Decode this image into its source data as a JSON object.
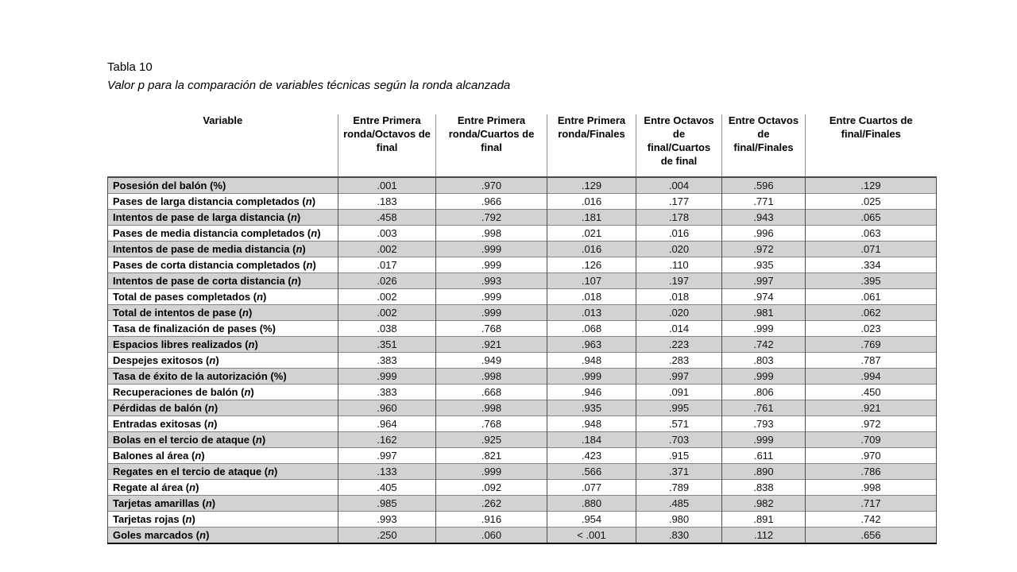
{
  "page": {
    "title": "Tabla 10",
    "caption": "Valor p para la comparación de variables técnicas según la ronda alcanzada"
  },
  "table": {
    "variable_header": "Variable",
    "comparison_headers": [
      "Entre Primera ronda/Octavos de final",
      "Entre Primera ronda/Cuartos de final",
      "Entre Primera ronda/Finales",
      "Entre Octavos de final/Cuartos de final",
      "Entre Octavos de final/Finales",
      "Entre Cuartos de final/Finales"
    ],
    "rows": [
      {
        "name": "Posesión del balón",
        "unit": "%",
        "values": [
          ".001",
          ".970",
          ".129",
          ".004",
          ".596",
          ".129"
        ]
      },
      {
        "name": "Pases de larga distancia completados",
        "unit": "n",
        "values": [
          ".183",
          ".966",
          ".016",
          ".177",
          ".771",
          ".025"
        ]
      },
      {
        "name": "Intentos de pase de larga distancia",
        "unit": "n",
        "values": [
          ".458",
          ".792",
          ".181",
          ".178",
          ".943",
          ".065"
        ]
      },
      {
        "name": "Pases de media distancia completados",
        "unit": "n",
        "values": [
          ".003",
          ".998",
          ".021",
          ".016",
          ".996",
          ".063"
        ]
      },
      {
        "name": "Intentos de pase de media distancia",
        "unit": "n",
        "values": [
          ".002",
          ".999",
          ".016",
          ".020",
          ".972",
          ".071"
        ]
      },
      {
        "name": "Pases de corta distancia completados",
        "unit": "n",
        "values": [
          ".017",
          ".999",
          ".126",
          ".110",
          ".935",
          ".334"
        ]
      },
      {
        "name": "Intentos de pase de corta distancia",
        "unit": "n",
        "values": [
          ".026",
          ".993",
          ".107",
          ".197",
          ".997",
          ".395"
        ]
      },
      {
        "name": "Total de pases completados",
        "unit": "n",
        "values": [
          ".002",
          ".999",
          ".018",
          ".018",
          ".974",
          ".061"
        ]
      },
      {
        "name": "Total de intentos de pase",
        "unit": "n",
        "values": [
          ".002",
          ".999",
          ".013",
          ".020",
          ".981",
          ".062"
        ]
      },
      {
        "name": "Tasa de finalización de pases",
        "unit": "%",
        "values": [
          ".038",
          ".768",
          ".068",
          ".014",
          ".999",
          ".023"
        ]
      },
      {
        "name": "Espacios libres realizados",
        "unit": "n",
        "values": [
          ".351",
          ".921",
          ".963",
          ".223",
          ".742",
          ".769"
        ]
      },
      {
        "name": "Despejes exitosos",
        "unit": "n",
        "values": [
          ".383",
          ".949",
          ".948",
          ".283",
          ".803",
          ".787"
        ]
      },
      {
        "name": "Tasa de éxito de la autorización",
        "unit": "%",
        "values": [
          ".999",
          ".998",
          ".999",
          ".997",
          ".999",
          ".994"
        ]
      },
      {
        "name": "Recuperaciones de balón",
        "unit": "n",
        "values": [
          ".383",
          ".668",
          ".946",
          ".091",
          ".806",
          ".450"
        ]
      },
      {
        "name": "Pérdidas de balón",
        "unit": "n",
        "values": [
          ".960",
          ".998",
          ".935",
          ".995",
          ".761",
          ".921"
        ]
      },
      {
        "name": "Entradas exitosas",
        "unit": "n",
        "values": [
          ".964",
          ".768",
          ".948",
          ".571",
          ".793",
          ".972"
        ]
      },
      {
        "name": "Bolas en el tercio de ataque",
        "unit": "n",
        "values": [
          ".162",
          ".925",
          ".184",
          ".703",
          ".999",
          ".709"
        ]
      },
      {
        "name": "Balones al área",
        "unit": "n",
        "values": [
          ".997",
          ".821",
          ".423",
          ".915",
          ".611",
          ".970"
        ]
      },
      {
        "name": "Regates en el tercio de ataque",
        "unit": "n",
        "values": [
          ".133",
          ".999",
          ".566",
          ".371",
          ".890",
          ".786"
        ]
      },
      {
        "name": "Regate al área",
        "unit": "n",
        "values": [
          ".405",
          ".092",
          ".077",
          ".789",
          ".838",
          ".998"
        ]
      },
      {
        "name": "Tarjetas amarillas",
        "unit": "n",
        "values": [
          ".985",
          ".262",
          ".880",
          ".485",
          ".982",
          ".717"
        ]
      },
      {
        "name": "Tarjetas rojas",
        "unit": "n",
        "values": [
          ".993",
          ".916",
          ".954",
          ".980",
          ".891",
          ".742"
        ]
      },
      {
        "name": "Goles marcados",
        "unit": "n",
        "values": [
          ".250",
          ".060",
          "< .001",
          ".830",
          ".112",
          ".656"
        ]
      }
    ]
  }
}
